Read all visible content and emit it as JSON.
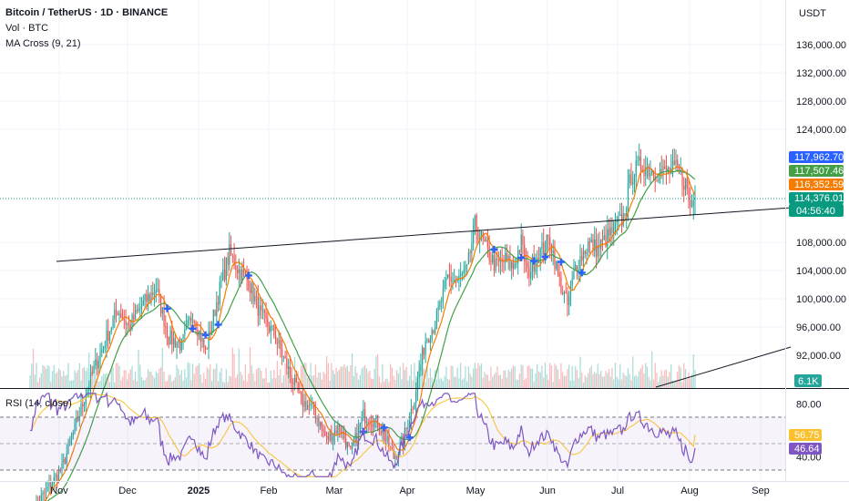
{
  "header": {
    "title": "Bitcoin / TetherUS · 1D · BINANCE",
    "volume_label": "Vol · BTC",
    "ma_label": "MA Cross (9, 21)",
    "currency": "USDT"
  },
  "rsi_panel": {
    "label": "RSI (14, close)"
  },
  "colors": {
    "up": "#26a69a",
    "down": "#ef5350",
    "ma_fast": "#f57c00",
    "ma_slow": "#43a047",
    "rsi": "#7e57c2",
    "rsi_ma": "#fbc02d",
    "cross": "#2962ff",
    "trendline": "#131722"
  },
  "chart_data": [
    {
      "type": "candlestick",
      "title": "Bitcoin / TetherUS · 1D · BINANCE",
      "y_unit": "USDT",
      "y_ticks": [
        "136,000.00",
        "132,000.00",
        "128,000.00",
        "124,000.00",
        "108,000.00",
        "104,000.00",
        "100,000.00",
        "96,000.00",
        "92,000.00"
      ],
      "x_ticks": [
        "Nov",
        "Dec",
        "2025",
        "Feb",
        "Mar",
        "Apr",
        "May",
        "Jun",
        "Jul",
        "Aug",
        "Sep"
      ],
      "price_tags": [
        {
          "label": "117,962.70",
          "value": 117962.7,
          "color": "#2962ff"
        },
        {
          "label": "117,507.46",
          "value": 117507.46,
          "color": "#43a047"
        },
        {
          "label": "116,352.59",
          "value": 116352.59,
          "color": "#f57c00"
        },
        {
          "label": "114,376.01",
          "value": 114376.01,
          "color": "#089981"
        }
      ],
      "countdown": "04:56:40",
      "volume_tag": "6.1K",
      "monthly_closes": [
        {
          "month": "Nov",
          "close": 96400
        },
        {
          "month": "Dec",
          "close": 93400
        },
        {
          "month": "Jan",
          "close": 102400
        },
        {
          "month": "Feb",
          "close": 84300
        },
        {
          "month": "Mar",
          "close": 82500
        },
        {
          "month": "Apr",
          "close": 94200
        },
        {
          "month": "May",
          "close": 104600
        },
        {
          "month": "Jun",
          "close": 107100
        },
        {
          "month": "Jul",
          "close": 115700
        },
        {
          "month": "Aug",
          "close": 114376
        }
      ],
      "series": [
        {
          "name": "MA Cross (9, 21)",
          "kind": "moving averages"
        }
      ],
      "annotations": [
        "upper trendline",
        "lower trendline",
        "MA cross markers"
      ]
    },
    {
      "type": "line",
      "title": "RSI (14, close)",
      "y_ticks": [
        "80.00",
        "40.00"
      ],
      "y_range": [
        30,
        85
      ],
      "bands": [
        70,
        50,
        30
      ],
      "last_values": [
        {
          "label": "56.75",
          "value": 56.75,
          "color": "#fbc02d"
        },
        {
          "label": "46.64",
          "value": 46.64,
          "color": "#7e57c2"
        }
      ]
    }
  ]
}
